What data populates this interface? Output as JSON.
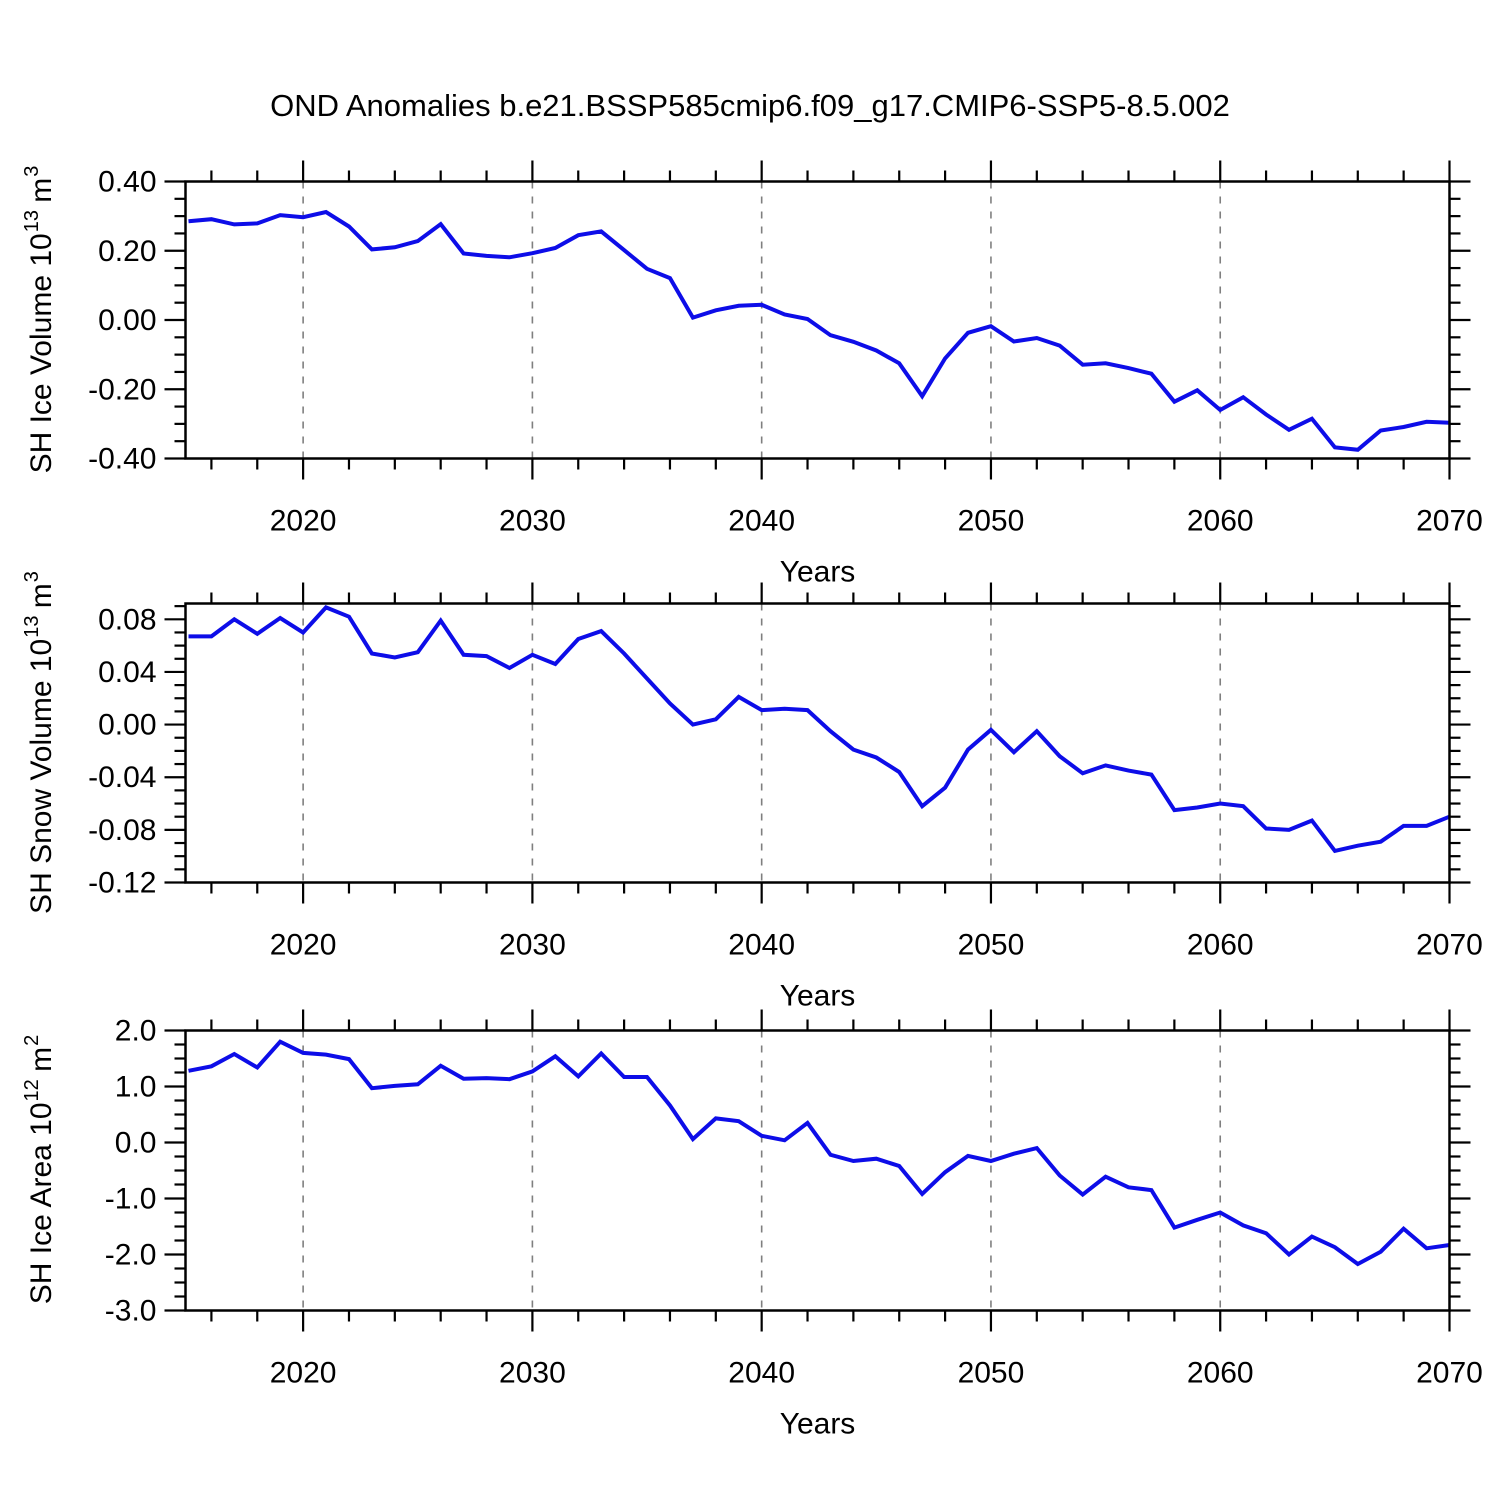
{
  "title": "OND Anomalies b.e21.BSSP585cmip6.f09_g17.CMIP6-SSP5-8.5.002",
  "colors": {
    "line": "#0d0de8",
    "grid": "#7f7f7f",
    "frame": "#000000",
    "text": "#000000"
  },
  "chart_data": [
    {
      "type": "line",
      "panel": "top",
      "ylabel": "SH Ice Volume 10^13 m^3",
      "ylabel_parts": {
        "base": "SH Ice Volume 10",
        "sup1": "13",
        "mid": " m",
        "sup2": "3"
      },
      "xlabel": "Years",
      "x": [
        2015,
        2016,
        2017,
        2018,
        2019,
        2020,
        2021,
        2022,
        2023,
        2024,
        2025,
        2026,
        2027,
        2028,
        2029,
        2030,
        2031,
        2032,
        2033,
        2034,
        2035,
        2036,
        2037,
        2038,
        2039,
        2040,
        2041,
        2042,
        2043,
        2044,
        2045,
        2046,
        2047,
        2048,
        2049,
        2050,
        2051,
        2052,
        2053,
        2054,
        2055,
        2056,
        2057,
        2058,
        2059,
        2060,
        2061,
        2062,
        2063,
        2064,
        2065,
        2066,
        2067,
        2068,
        2069,
        2070
      ],
      "values": [
        0.285,
        0.291,
        0.276,
        0.279,
        0.303,
        0.297,
        0.312,
        0.27,
        0.204,
        0.21,
        0.228,
        0.277,
        0.192,
        0.185,
        0.181,
        0.193,
        0.208,
        0.245,
        0.256,
        0.202,
        0.148,
        0.121,
        0.007,
        0.028,
        0.041,
        0.044,
        0.016,
        0.003,
        -0.044,
        -0.063,
        -0.088,
        -0.125,
        -0.22,
        -0.111,
        -0.037,
        -0.018,
        -0.062,
        -0.052,
        -0.074,
        -0.129,
        -0.125,
        -0.139,
        -0.155,
        -0.236,
        -0.203,
        -0.26,
        -0.223,
        -0.273,
        -0.317,
        -0.285,
        -0.368,
        -0.375,
        -0.319,
        -0.309,
        -0.294,
        -0.297
      ],
      "ylim": [
        -0.4,
        0.4
      ],
      "yticks": [
        {
          "value": 0.4,
          "label": "0.40"
        },
        {
          "value": 0.2,
          "label": "0.20"
        },
        {
          "value": 0.0,
          "label": "0.00"
        },
        {
          "value": -0.2,
          "label": "-0.20"
        },
        {
          "value": -0.4,
          "label": "-0.40"
        }
      ],
      "yminor_step": 0.05,
      "xlim": [
        2014.87,
        2070
      ],
      "xticks": [
        {
          "value": 2020,
          "label": "2020"
        },
        {
          "value": 2030,
          "label": "2030"
        },
        {
          "value": 2040,
          "label": "2040"
        },
        {
          "value": 2050,
          "label": "2050"
        },
        {
          "value": 2060,
          "label": "2060"
        },
        {
          "value": 2070,
          "label": "2070"
        }
      ],
      "xminor_step": 2,
      "grid_x": [
        2020,
        2030,
        2040,
        2050,
        2060
      ],
      "grid_dashed": true,
      "legend": "none"
    },
    {
      "type": "line",
      "panel": "middle",
      "ylabel": "SH Snow Volume 10^13 m^3",
      "ylabel_parts": {
        "base": "SH Snow Volume 10",
        "sup1": "13",
        "mid": " m",
        "sup2": "3"
      },
      "xlabel": "Years",
      "x": [
        2015,
        2016,
        2017,
        2018,
        2019,
        2020,
        2021,
        2022,
        2023,
        2024,
        2025,
        2026,
        2027,
        2028,
        2029,
        2030,
        2031,
        2032,
        2033,
        2034,
        2035,
        2036,
        2037,
        2038,
        2039,
        2040,
        2041,
        2042,
        2043,
        2044,
        2045,
        2046,
        2047,
        2048,
        2049,
        2050,
        2051,
        2052,
        2053,
        2054,
        2055,
        2056,
        2057,
        2058,
        2059,
        2060,
        2061,
        2062,
        2063,
        2064,
        2065,
        2066,
        2067,
        2068,
        2069,
        2070
      ],
      "values": [
        0.067,
        0.067,
        0.08,
        0.069,
        0.081,
        0.07,
        0.089,
        0.082,
        0.054,
        0.051,
        0.055,
        0.079,
        0.053,
        0.052,
        0.043,
        0.053,
        0.046,
        0.065,
        0.071,
        0.054,
        0.035,
        0.016,
        0.0,
        0.004,
        0.021,
        0.011,
        0.012,
        0.011,
        -0.005,
        -0.019,
        -0.025,
        -0.036,
        -0.062,
        -0.048,
        -0.019,
        -0.004,
        -0.021,
        -0.005,
        -0.024,
        -0.037,
        -0.031,
        -0.035,
        -0.038,
        -0.065,
        -0.063,
        -0.06,
        -0.062,
        -0.079,
        -0.08,
        -0.073,
        -0.096,
        -0.092,
        -0.089,
        -0.077,
        -0.077,
        -0.07
      ],
      "ylim": [
        -0.12,
        0.092
      ],
      "yticks": [
        {
          "value": 0.08,
          "label": "0.08"
        },
        {
          "value": 0.04,
          "label": "0.04"
        },
        {
          "value": 0.0,
          "label": "0.00"
        },
        {
          "value": -0.04,
          "label": "-0.04"
        },
        {
          "value": -0.08,
          "label": "-0.08"
        },
        {
          "value": -0.12,
          "label": "-0.12"
        }
      ],
      "yminor_step": 0.01,
      "xlim": [
        2014.87,
        2070
      ],
      "xticks": [
        {
          "value": 2020,
          "label": "2020"
        },
        {
          "value": 2030,
          "label": "2030"
        },
        {
          "value": 2040,
          "label": "2040"
        },
        {
          "value": 2050,
          "label": "2050"
        },
        {
          "value": 2060,
          "label": "2060"
        },
        {
          "value": 2070,
          "label": "2070"
        }
      ],
      "xminor_step": 2,
      "grid_x": [
        2020,
        2030,
        2040,
        2050,
        2060
      ],
      "grid_dashed": true,
      "legend": "none"
    },
    {
      "type": "line",
      "panel": "bottom",
      "ylabel": "SH Ice Area 10^12 m^2",
      "ylabel_parts": {
        "base": "SH Ice Area 10",
        "sup1": "12",
        "mid": " m",
        "sup2": "2"
      },
      "xlabel": "Years",
      "x": [
        2015,
        2016,
        2017,
        2018,
        2019,
        2020,
        2021,
        2022,
        2023,
        2024,
        2025,
        2026,
        2027,
        2028,
        2029,
        2030,
        2031,
        2032,
        2033,
        2034,
        2035,
        2036,
        2037,
        2038,
        2039,
        2040,
        2041,
        2042,
        2043,
        2044,
        2045,
        2046,
        2047,
        2048,
        2049,
        2050,
        2051,
        2052,
        2053,
        2054,
        2055,
        2056,
        2057,
        2058,
        2059,
        2060,
        2061,
        2062,
        2063,
        2064,
        2065,
        2066,
        2067,
        2068,
        2069,
        2070
      ],
      "values": [
        1.28,
        1.36,
        1.58,
        1.34,
        1.8,
        1.6,
        1.57,
        1.49,
        0.97,
        1.01,
        1.04,
        1.37,
        1.14,
        1.15,
        1.13,
        1.27,
        1.54,
        1.18,
        1.59,
        1.17,
        1.17,
        0.66,
        0.06,
        0.43,
        0.38,
        0.12,
        0.04,
        0.35,
        -0.22,
        -0.33,
        -0.29,
        -0.42,
        -0.92,
        -0.53,
        -0.24,
        -0.33,
        -0.2,
        -0.1,
        -0.59,
        -0.93,
        -0.61,
        -0.8,
        -0.85,
        -1.52,
        -1.38,
        -1.25,
        -1.48,
        -1.62,
        -2.0,
        -1.68,
        -1.87,
        -2.17,
        -1.95,
        -1.54,
        -1.89,
        -1.83
      ],
      "ylim": [
        -3.0,
        2.0
      ],
      "yticks": [
        {
          "value": 2.0,
          "label": "2.0"
        },
        {
          "value": 1.0,
          "label": "1.0"
        },
        {
          "value": 0.0,
          "label": "0.0"
        },
        {
          "value": -1.0,
          "label": "-1.0"
        },
        {
          "value": -2.0,
          "label": "-2.0"
        },
        {
          "value": -3.0,
          "label": "-3.0"
        }
      ],
      "yminor_step": 0.25,
      "xlim": [
        2014.87,
        2070
      ],
      "xticks": [
        {
          "value": 2020,
          "label": "2020"
        },
        {
          "value": 2030,
          "label": "2030"
        },
        {
          "value": 2040,
          "label": "2040"
        },
        {
          "value": 2050,
          "label": "2050"
        },
        {
          "value": 2060,
          "label": "2060"
        },
        {
          "value": 2070,
          "label": "2070"
        }
      ],
      "xminor_step": 2,
      "grid_x": [
        2020,
        2030,
        2040,
        2050,
        2060
      ],
      "grid_dashed": true,
      "legend": "none"
    }
  ]
}
